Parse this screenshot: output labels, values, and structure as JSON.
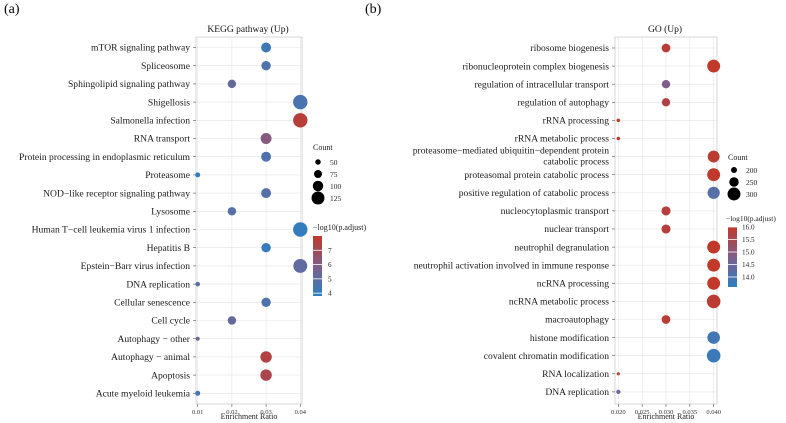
{
  "chart_data": [
    {
      "type": "scatter",
      "panel_label": "(a)",
      "title": "KEGG pathway (Up)",
      "xlabel": "Enrichment Ratio",
      "ylabel": "",
      "xlim": [
        0.0095,
        0.0405
      ],
      "xticks": [
        0.01,
        0.02,
        0.03,
        0.04
      ],
      "xtick_labels": [
        "0.01",
        "0.02",
        "0.03",
        "0.04"
      ],
      "grid": true,
      "legend_position": "right",
      "size_legend": {
        "title": "Count",
        "values": [
          50,
          75,
          100,
          125
        ]
      },
      "color_legend": {
        "title": "−log10(p.adjust)",
        "ticks": [
          4,
          5,
          6,
          7
        ],
        "range": [
          3.8,
          8.0
        ],
        "low_color": "#2f7fc1",
        "mid_color": "#7e5e8a",
        "high_color": "#c0392b"
      },
      "categories": [
        "mTOR signaling pathway",
        "Spliceosome",
        "Sphingolipid signaling pathway",
        "Shigellosis",
        "Salmonella infection",
        "RNA transport",
        "Protein processing in endoplasmic reticulum",
        "Proteasome",
        "NOD−like receptor signaling pathway",
        "Lysosome",
        "Human T−cell leukemia virus 1 infection",
        "Hepatitis B",
        "Epstein−Barr virus infection",
        "DNA replication",
        "Cellular senescence",
        "Cell cycle",
        "Autophagy − other",
        "Autophagy − animal",
        "Apoptosis",
        "Acute myeloid leukemia"
      ],
      "x": [
        0.03,
        0.03,
        0.02,
        0.04,
        0.04,
        0.03,
        0.03,
        0.01,
        0.03,
        0.02,
        0.04,
        0.03,
        0.04,
        0.01,
        0.03,
        0.02,
        0.01,
        0.03,
        0.03,
        0.01
      ],
      "count": [
        95,
        90,
        80,
        140,
        140,
        105,
        95,
        45,
        95,
        80,
        140,
        90,
        135,
        40,
        90,
        80,
        35,
        110,
        110,
        45
      ],
      "neglog10_padj": [
        4.2,
        4.6,
        5.2,
        4.5,
        7.7,
        6.2,
        4.6,
        4.0,
        4.8,
        4.8,
        3.9,
        4.0,
        5.1,
        5.0,
        4.6,
        5.2,
        5.5,
        7.5,
        7.3,
        4.4
      ]
    },
    {
      "type": "scatter",
      "panel_label": "(b)",
      "title": "GO (Up)",
      "xlabel": "Enrichment Ratio",
      "ylabel": "",
      "xlim": [
        0.0193,
        0.0407
      ],
      "xticks": [
        0.02,
        0.025,
        0.03,
        0.035,
        0.04
      ],
      "xtick_labels": [
        "0.020",
        "0.025",
        "0.030",
        "0.035",
        "0.040"
      ],
      "grid": true,
      "legend_position": "right",
      "size_legend": {
        "title": "Count",
        "values": [
          200,
          250,
          300
        ]
      },
      "color_legend": {
        "title": "−log10(p.adjust)",
        "ticks": [
          14.0,
          14.5,
          15.0,
          15.5,
          16.0
        ],
        "tick_labels": [
          "14.0",
          "14.5",
          "15.0",
          "15.5",
          "16.0"
        ],
        "range": [
          13.6,
          16.0
        ],
        "low_color": "#2f7fc1",
        "mid_color": "#7e5e8a",
        "high_color": "#c0392b"
      },
      "categories": [
        "ribosome biogenesis",
        "ribonucleoprotein complex biogenesis",
        "regulation of intracellular transport",
        "regulation of autophagy",
        "rRNA processing",
        "rRNA metabolic process",
        "proteasome−mediated ubiquitin−dependent protein\ncatabolic process",
        "proteasomal protein catabolic process",
        "positive regulation of catabolic process",
        "nucleocytoplasmic transport",
        "nuclear transport",
        "neutrophil degranulation",
        "neutrophil activation involved in immune response",
        "ncRNA processing",
        "ncRNA metabolic process",
        "macroautophagy",
        "histone modification",
        "covalent chromatin modification",
        "RNA localization",
        "DNA replication"
      ],
      "x": [
        0.03,
        0.04,
        0.03,
        0.03,
        0.02,
        0.02,
        0.04,
        0.04,
        0.04,
        0.03,
        0.03,
        0.04,
        0.04,
        0.04,
        0.04,
        0.03,
        0.04,
        0.04,
        0.02,
        0.02
      ],
      "count": [
        240,
        300,
        235,
        235,
        165,
        165,
        285,
        300,
        290,
        245,
        245,
        300,
        300,
        300,
        310,
        240,
        295,
        310,
        160,
        175
      ],
      "neglog10_padj": [
        15.9,
        16.0,
        14.8,
        15.7,
        16.0,
        16.0,
        15.9,
        16.0,
        14.2,
        15.8,
        15.8,
        16.0,
        16.0,
        16.0,
        15.9,
        15.9,
        13.9,
        13.8,
        15.9,
        14.5
      ]
    }
  ]
}
